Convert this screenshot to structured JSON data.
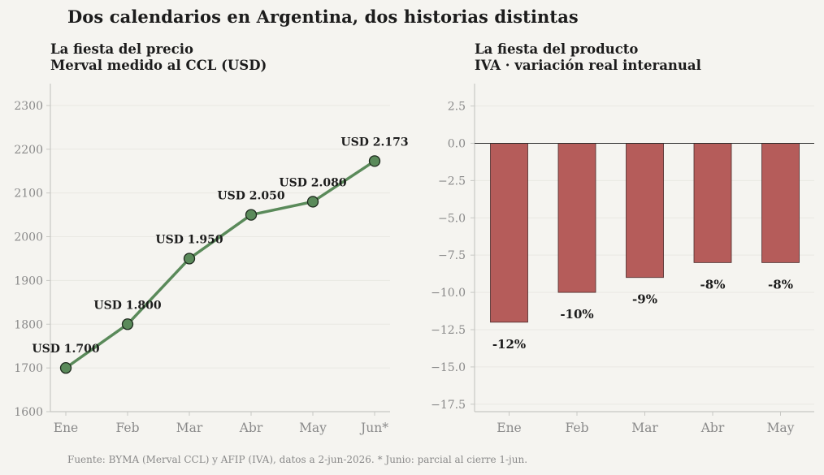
{
  "suptitle": "Dos calendarios en Argentina, dos historias distintas",
  "source": "Fuente: BYMA (Merval CCL) y AFIP (IVA), datos a 2-jun-2026. * Junio: parcial al cierre 1-jun.",
  "colors": {
    "background": "#f5f4f0",
    "line": "#5a8a5a",
    "marker": "#5a8a5a",
    "bar": "#b55c5a",
    "tick": "#8a8a8a",
    "spine": "#c8c8c4",
    "text": "#1c1c1c"
  },
  "chart_data": [
    {
      "id": "merval",
      "type": "line",
      "title_line1": "La fiesta del precio",
      "title_line2": "Merval medido al CCL (USD)",
      "categories": [
        "Ene",
        "Feb",
        "Mar",
        "Abr",
        "May",
        "Jun*"
      ],
      "values": [
        1700,
        1800,
        1950,
        2050,
        2080,
        2173
      ],
      "data_labels": [
        "USD 1.700",
        "USD 1.800",
        "USD 1.950",
        "USD 2.050",
        "USD 2.080",
        "USD 2.173"
      ],
      "ylim": [
        1600,
        2350
      ],
      "yticks": [
        1600,
        1700,
        1800,
        1900,
        2000,
        2100,
        2200,
        2300
      ],
      "ytick_labels": [
        "1600",
        "1700",
        "1800",
        "1900",
        "2000",
        "2100",
        "2200",
        "2300"
      ],
      "grid": true
    },
    {
      "id": "iva",
      "type": "bar",
      "title_line1": "La fiesta del producto",
      "title_line2": "IVA · variación real interanual",
      "categories": [
        "Ene",
        "Feb",
        "Mar",
        "Abr",
        "May"
      ],
      "values": [
        -12,
        -10,
        -9,
        -8,
        -8
      ],
      "data_labels": [
        "-12%",
        "-10%",
        "-9%",
        "-8%",
        "-8%"
      ],
      "ylim": [
        -18,
        4
      ],
      "yticks": [
        2.5,
        0,
        -2.5,
        -5,
        -7.5,
        -10,
        -12.5,
        -15,
        -17.5
      ],
      "ytick_labels": [
        "2.5",
        "0.0",
        "−2.5",
        "−5.0",
        "−7.5",
        "−10.0",
        "−12.5",
        "−15.0",
        "−17.5"
      ],
      "grid": true,
      "zero_line": true
    }
  ]
}
